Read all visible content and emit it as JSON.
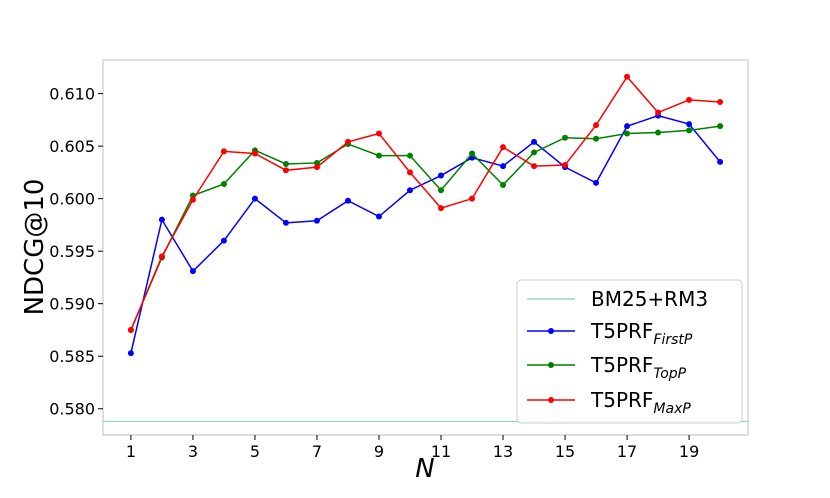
{
  "chart_data": {
    "type": "line",
    "xlabel": "N",
    "ylabel": "NDCG@10",
    "xlim": [
      0.1,
      20.9
    ],
    "ylim": [
      0.5775,
      0.6132
    ],
    "x_ticks": [
      1,
      3,
      5,
      7,
      9,
      11,
      13,
      15,
      17,
      19
    ],
    "x_tick_labels": [
      "1",
      "3",
      "5",
      "7",
      "9",
      "11",
      "13",
      "15",
      "17",
      "19"
    ],
    "y_ticks": [
      0.58,
      0.585,
      0.59,
      0.595,
      0.6,
      0.605,
      0.61
    ],
    "y_tick_labels": [
      "0.580",
      "0.585",
      "0.590",
      "0.595",
      "0.600",
      "0.605",
      "0.610"
    ],
    "grid": false,
    "legend_position": "bottom-right",
    "x": [
      1,
      2,
      3,
      4,
      5,
      6,
      7,
      8,
      9,
      10,
      11,
      12,
      13,
      14,
      15,
      16,
      17,
      18,
      19,
      20
    ],
    "baseline": {
      "name": "BM25+RM3",
      "value": 0.5788,
      "color": "#7fcdbb"
    },
    "series": [
      {
        "name": "T5PRF",
        "name_subscript": "FirstP",
        "color": "#0000ff",
        "values": [
          0.5853,
          0.598,
          0.5931,
          0.596,
          0.6,
          0.5977,
          0.5979,
          0.5998,
          0.5983,
          0.6008,
          0.6022,
          0.6039,
          0.6031,
          0.6054,
          0.603,
          0.6015,
          0.6069,
          0.6079,
          0.6071,
          0.6035
        ]
      },
      {
        "name": "T5PRF",
        "name_subscript": "TopP",
        "color": "#008000",
        "values": [
          0.5875,
          0.5944,
          0.6003,
          0.6014,
          0.6046,
          0.6033,
          0.6034,
          0.6052,
          0.6041,
          0.6041,
          0.6008,
          0.6043,
          0.6013,
          0.6044,
          0.6058,
          0.6057,
          0.6062,
          0.6063,
          0.6065,
          0.6069
        ]
      },
      {
        "name": "T5PRF",
        "name_subscript": "MaxP",
        "color": "#ff0000",
        "values": [
          0.5875,
          0.5945,
          0.5999,
          0.6045,
          0.6043,
          0.6027,
          0.603,
          0.6054,
          0.6062,
          0.6025,
          0.5991,
          0.6,
          0.6049,
          0.6031,
          0.6032,
          0.607,
          0.6116,
          0.6082,
          0.6094,
          0.6092
        ]
      }
    ]
  }
}
